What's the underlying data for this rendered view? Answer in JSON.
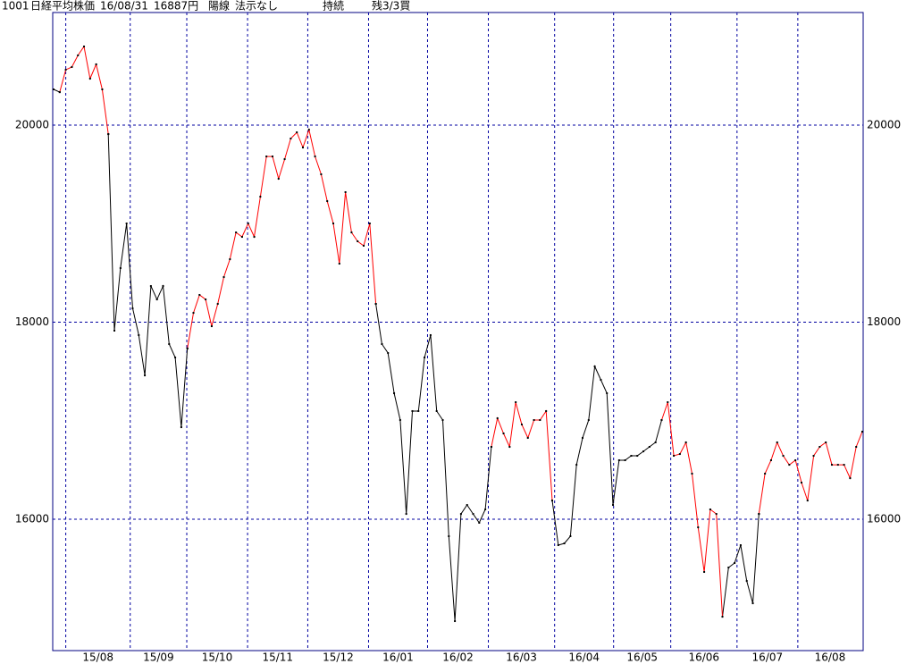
{
  "header": {
    "code": "1001",
    "name": "日経平均株価",
    "date": "16/08/31",
    "price": "16887円",
    "candle": "陽線",
    "method": "法示なし",
    "mode": "持続",
    "position": "残3/3買"
  },
  "chart_data": {
    "type": "line",
    "xlim": [
      0,
      133
    ],
    "xticks": [
      {
        "value": 2,
        "label": "15/08"
      },
      {
        "value": 12.6,
        "label": "15/09"
      },
      {
        "value": 21.9,
        "label": "15/10"
      },
      {
        "value": 31.9,
        "label": "15/11"
      },
      {
        "value": 41.8,
        "label": "15/12"
      },
      {
        "value": 51.8,
        "label": "16/01"
      },
      {
        "value": 61.5,
        "label": "16/02"
      },
      {
        "value": 71.5,
        "label": "16/03"
      },
      {
        "value": 82.4,
        "label": "16/04"
      },
      {
        "value": 92.1,
        "label": "16/05"
      },
      {
        "value": 101.5,
        "label": "16/06"
      },
      {
        "value": 112.4,
        "label": "16/07"
      },
      {
        "value": 122.4,
        "label": "16/08"
      }
    ],
    "ylim": [
      14667,
      21143
    ],
    "yticks": [
      16000,
      18000,
      20000
    ],
    "grid": true,
    "grid_color": "#0000a0",
    "marker_color": "#000000",
    "series": [
      {
        "color": "#000000",
        "values": [
          20363,
          20335,
          null,
          null,
          null,
          null,
          null,
          null,
          null,
          19909,
          17914,
          18549,
          19002,
          18140,
          17869,
          17460,
          18367,
          18231,
          18367,
          17778,
          17642,
          16934,
          17733,
          null,
          null,
          null,
          null,
          null,
          null,
          null,
          null,
          null,
          null,
          null,
          null,
          null,
          null,
          null,
          null,
          null,
          null,
          null,
          null,
          null,
          null,
          null,
          null,
          null,
          null,
          null,
          null,
          null,
          null,
          18186,
          17778,
          17687,
          17279,
          17007,
          16054,
          17098,
          17098,
          17642,
          17869,
          17098,
          17007,
          15828,
          14966,
          16054,
          16145,
          16054,
          15964,
          16100,
          16735,
          null,
          null,
          null,
          null,
          null,
          null,
          null,
          null,
          null,
          16190,
          15737,
          15755,
          15828,
          16553,
          16826,
          17007,
          17551,
          17415,
          17279,
          16145,
          16599,
          16599,
          16644,
          16644,
          16689,
          16735,
          16780,
          17007,
          null,
          null,
          null,
          null,
          null,
          null,
          null,
          null,
          null,
          15011,
          15510,
          15556,
          15737,
          15374,
          15147,
          16054,
          null,
          null,
          null,
          null,
          null,
          null,
          null,
          null,
          null,
          null,
          null,
          null,
          null,
          null,
          null,
          null,
          null
        ]
      },
      {
        "color": "#ff0000",
        "values": [
          null,
          20335,
          20562,
          20590,
          20708,
          20798,
          20472,
          20617,
          20363,
          19909,
          null,
          null,
          null,
          null,
          null,
          null,
          null,
          null,
          null,
          null,
          null,
          null,
          17733,
          18095,
          18277,
          18231,
          17959,
          18186,
          18458,
          18639,
          18911,
          18866,
          19002,
          18866,
          19274,
          19682,
          19682,
          19456,
          19655,
          19864,
          19927,
          19773,
          19954,
          19682,
          19501,
          19229,
          19002,
          18594,
          19320,
          18911,
          18821,
          18776,
          19002,
          18186,
          null,
          null,
          null,
          null,
          null,
          null,
          null,
          null,
          null,
          null,
          null,
          null,
          null,
          null,
          null,
          null,
          null,
          null,
          16735,
          17025,
          16871,
          16735,
          17188,
          16962,
          16826,
          17007,
          17007,
          17098,
          16190,
          null,
          null,
          null,
          null,
          null,
          null,
          null,
          null,
          null,
          null,
          null,
          null,
          null,
          null,
          null,
          null,
          null,
          17007,
          17188,
          16644,
          16662,
          16780,
          16463,
          15918,
          15465,
          16100,
          16054,
          15011,
          null,
          null,
          null,
          null,
          null,
          16054,
          16463,
          16599,
          16780,
          16644,
          16553,
          16599,
          16372,
          16190,
          16644,
          16735,
          16780,
          16553,
          16553,
          16553,
          16417,
          16735,
          16889
        ]
      }
    ]
  }
}
